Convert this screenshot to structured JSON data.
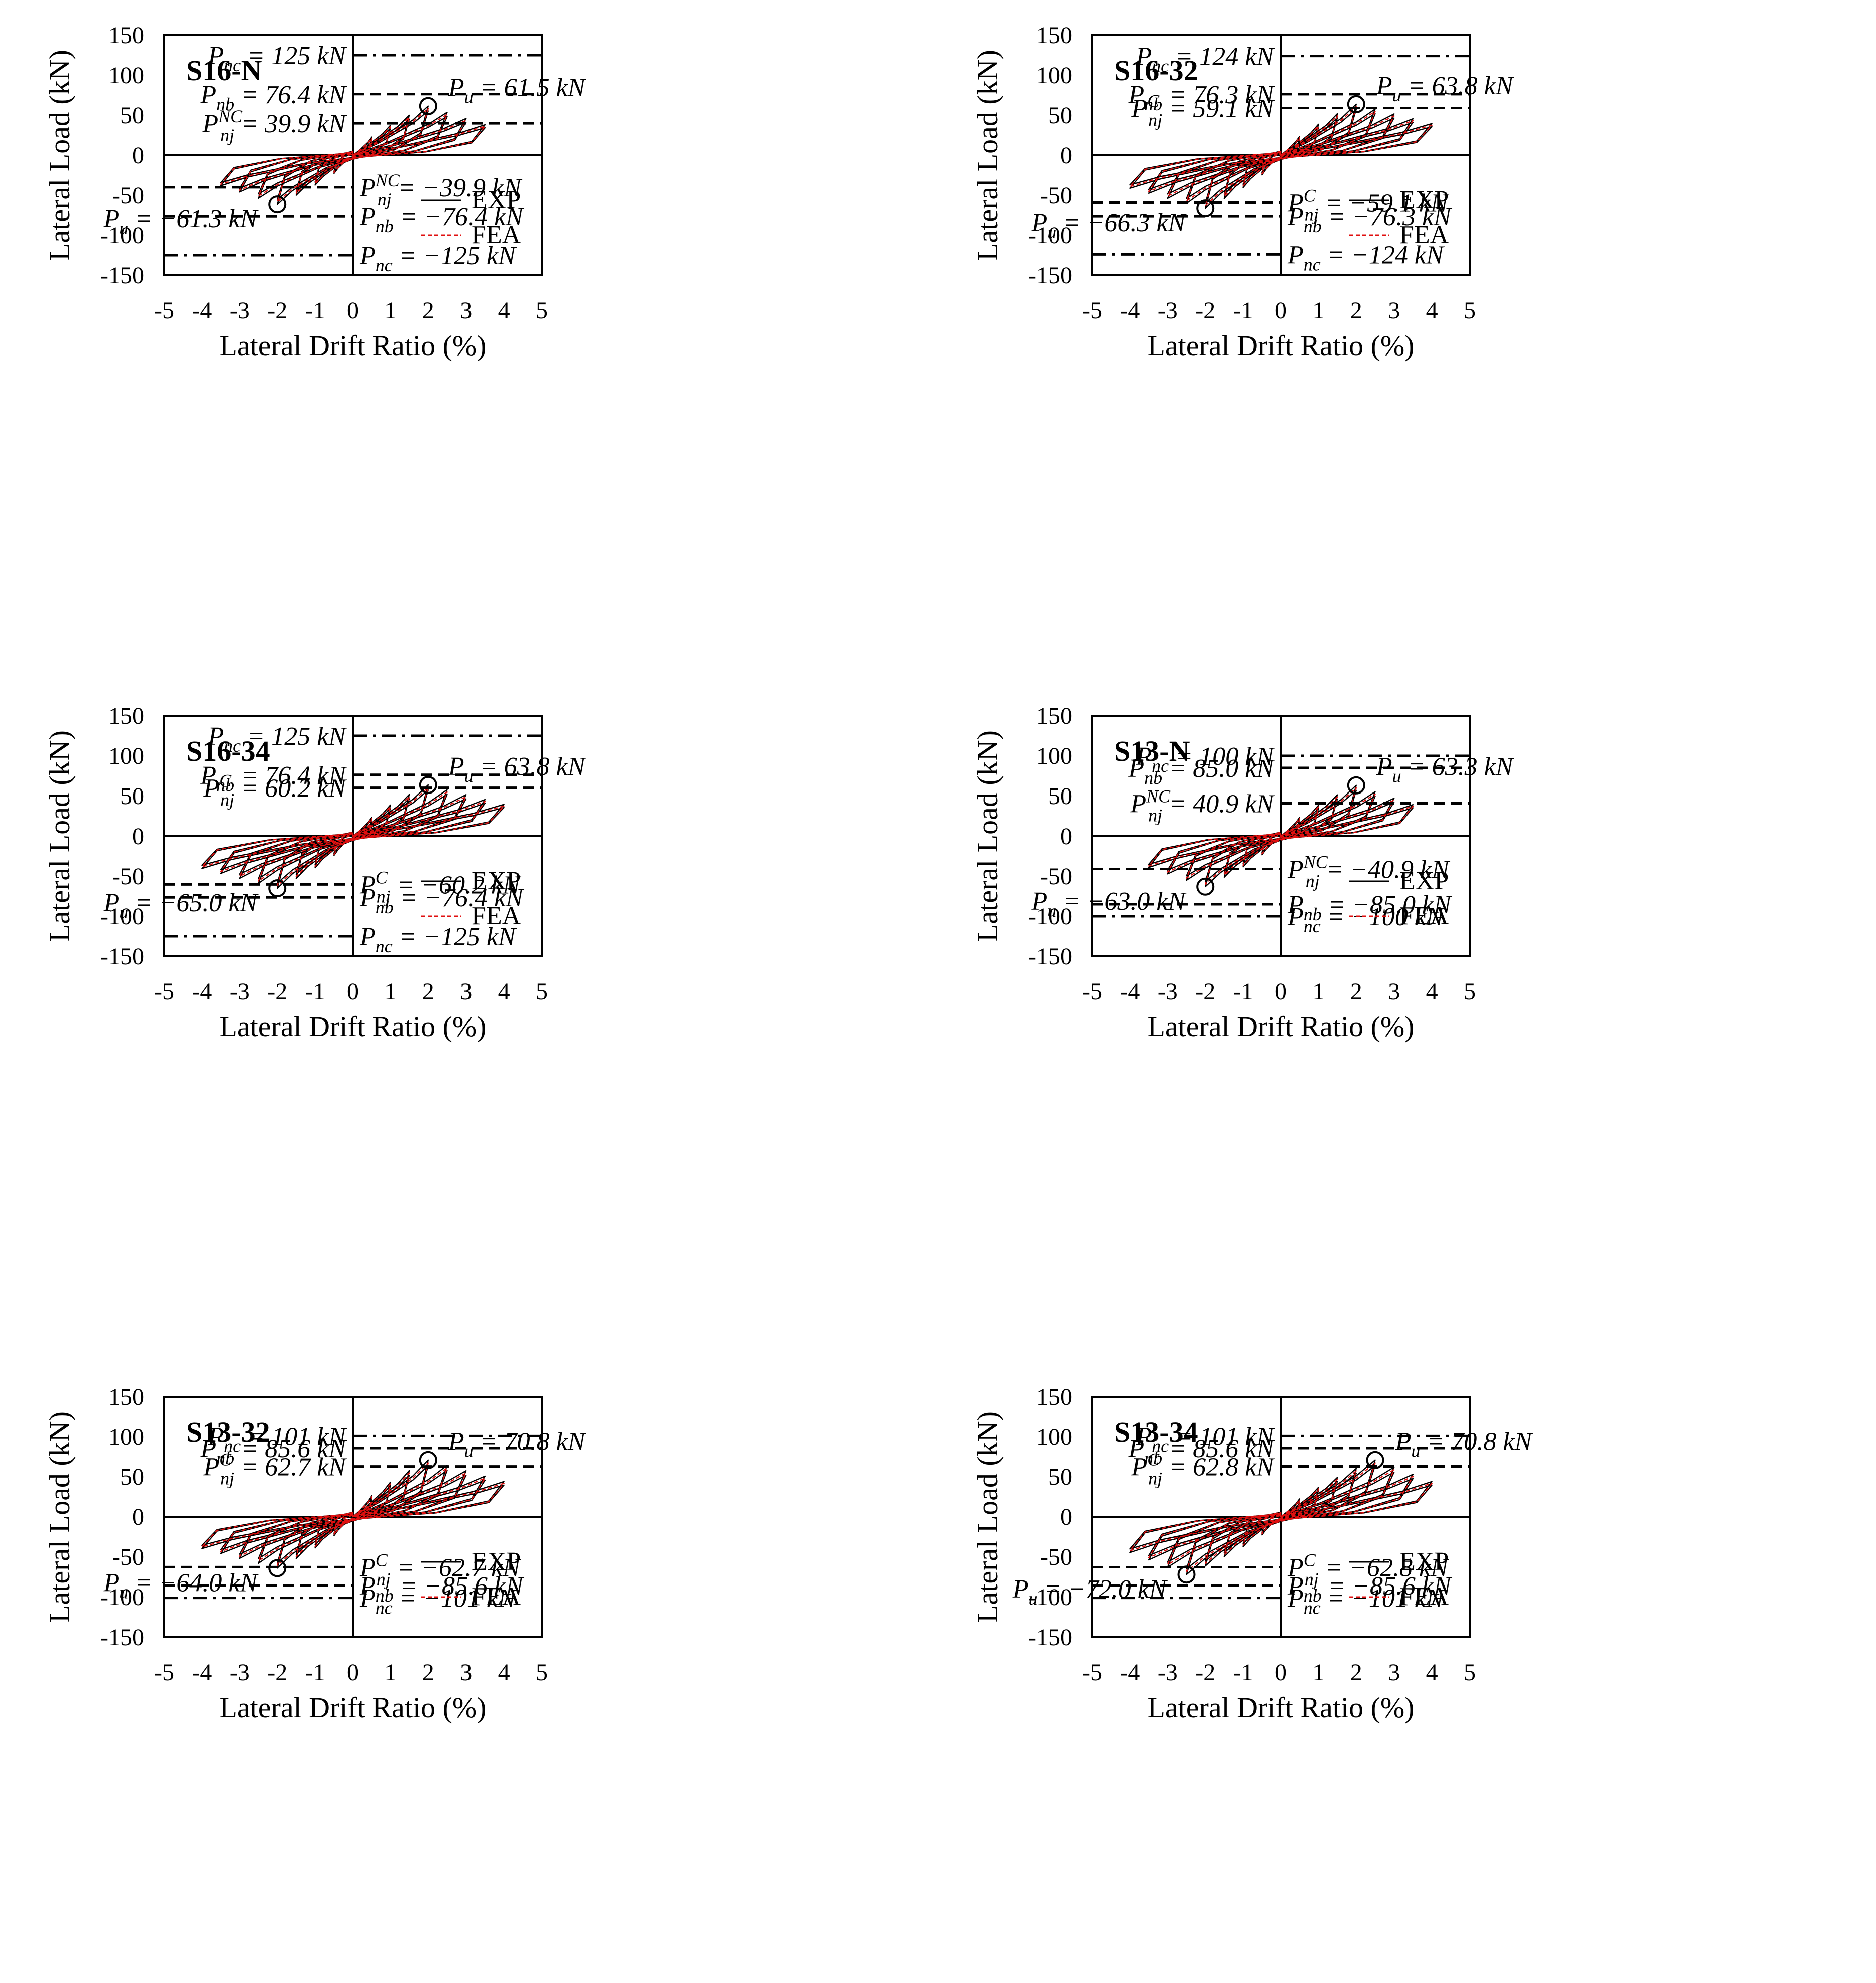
{
  "figure": {
    "series_legend": [
      {
        "name": "EXP",
        "color": "#000000",
        "style": "solid"
      },
      {
        "name": "FEA",
        "color": "#e01010",
        "style": "dashed"
      }
    ]
  },
  "chart_data": [
    {
      "type": "line",
      "title": "S16-N",
      "xlabel": "Lateral Drift Ratio (%)",
      "ylabel": "Lateral Load (kN)",
      "xlim": [
        -5,
        5
      ],
      "ylim": [
        -150,
        150
      ],
      "xticks": [
        "-5",
        "-4",
        "-3",
        "-2",
        "-1",
        "0",
        "1",
        "2",
        "3",
        "4",
        "5"
      ],
      "yticks": [
        "150",
        "100",
        "50",
        "0",
        "-50",
        "-100",
        "-150"
      ],
      "max_drift_pos": 3.5,
      "max_drift_neg": -3.5,
      "peak_pos": 61.5,
      "peak_neg": -61.3,
      "ref_lines": [
        {
          "y": 125,
          "style": "dashdot",
          "side": "right",
          "label": "P_nc = 125 kN"
        },
        {
          "y": 76.4,
          "style": "dashed",
          "side": "right",
          "label": "P_nb = 76.4 kN"
        },
        {
          "y": 39.9,
          "style": "dashed",
          "side": "right",
          "label": "P_nj^NC = 39.9 kN"
        },
        {
          "y": -39.9,
          "style": "dashed",
          "side": "left",
          "label": "P_nj^NC = −39.9 kN"
        },
        {
          "y": -76.4,
          "style": "dashed",
          "side": "left",
          "label": "P_nb = −76.4 kN"
        },
        {
          "y": -125,
          "style": "dashdot",
          "side": "left",
          "label": "P_nc = −125 kN"
        }
      ],
      "points": [
        {
          "x": 2.0,
          "y": 61.5,
          "label": "P_u = 61.5 kN"
        },
        {
          "x": -2.0,
          "y": -61.3,
          "label": "P_u = −61.3 kN"
        }
      ],
      "legend": [
        "EXP",
        "FEA"
      ]
    },
    {
      "type": "line",
      "title": "S16-32",
      "xlabel": "Lateral Drift Ratio (%)",
      "ylabel": "Lateral Load (kN)",
      "xlim": [
        -5,
        5
      ],
      "ylim": [
        -150,
        150
      ],
      "xticks": [
        "-5",
        "-4",
        "-3",
        "-2",
        "-1",
        "0",
        "1",
        "2",
        "3",
        "4",
        "5"
      ],
      "yticks": [
        "150",
        "100",
        "50",
        "0",
        "-50",
        "-100",
        "-150"
      ],
      "max_drift_pos": 4.0,
      "max_drift_neg": -4.0,
      "peak_pos": 63.8,
      "peak_neg": -66.3,
      "ref_lines": [
        {
          "y": 124,
          "style": "dashdot",
          "side": "right",
          "label": "P_nc = 124 kN"
        },
        {
          "y": 76.3,
          "style": "dashed",
          "side": "right",
          "label": "P_nb = 76.3 kN"
        },
        {
          "y": 59.1,
          "style": "dashed",
          "side": "right",
          "label": "P_nj^C = 59.1 kN"
        },
        {
          "y": -59.1,
          "style": "dashed",
          "side": "left",
          "label": "P_nj^C = −59.1 kN"
        },
        {
          "y": -76.3,
          "style": "dashed",
          "side": "left",
          "label": "P_nb = −76.3 kN"
        },
        {
          "y": -124,
          "style": "dashdot",
          "side": "left",
          "label": "P_nc = −124 kN"
        }
      ],
      "points": [
        {
          "x": 2.0,
          "y": 63.8,
          "label": "P_u = 63.8 kN"
        },
        {
          "x": -2.0,
          "y": -66.3,
          "label": "P_u = −66.3 kN"
        }
      ],
      "legend": [
        "EXP",
        "FEA"
      ]
    },
    {
      "type": "line",
      "title": "S16-34",
      "xlabel": "Lateral Drift Ratio (%)",
      "ylabel": "Lateral Load (kN)",
      "xlim": [
        -5,
        5
      ],
      "ylim": [
        -150,
        150
      ],
      "xticks": [
        "-5",
        "-4",
        "-3",
        "-2",
        "-1",
        "0",
        "1",
        "2",
        "3",
        "4",
        "5"
      ],
      "yticks": [
        "150",
        "100",
        "50",
        "0",
        "-50",
        "-100",
        "-150"
      ],
      "max_drift_pos": 4.0,
      "max_drift_neg": -4.0,
      "peak_pos": 63.8,
      "peak_neg": -65.0,
      "ref_lines": [
        {
          "y": 125,
          "style": "dashdot",
          "side": "right",
          "label": "P_nc = 125 kN"
        },
        {
          "y": 76.4,
          "style": "dashed",
          "side": "right",
          "label": "P_nb = 76.4 kN"
        },
        {
          "y": 60.2,
          "style": "dashed",
          "side": "right",
          "label": "P_nj^C = 60.2 kN"
        },
        {
          "y": -60.2,
          "style": "dashed",
          "side": "left",
          "label": "P_nj^C = −60.2 kN"
        },
        {
          "y": -76.4,
          "style": "dashed",
          "side": "left",
          "label": "P_nb = −76.4 kN"
        },
        {
          "y": -125,
          "style": "dashdot",
          "side": "left",
          "label": "P_nc = −125 kN"
        }
      ],
      "points": [
        {
          "x": 2.0,
          "y": 63.8,
          "label": "P_u = 63.8 kN"
        },
        {
          "x": -2.0,
          "y": -65.0,
          "label": "P_u = −65.0 kN"
        }
      ],
      "legend": [
        "EXP",
        "FEA"
      ]
    },
    {
      "type": "line",
      "title": "S13-N",
      "xlabel": "Lateral Drift Ratio (%)",
      "ylabel": "Lateral Load (kN)",
      "xlim": [
        -5,
        5
      ],
      "ylim": [
        -150,
        150
      ],
      "xticks": [
        "-5",
        "-4",
        "-3",
        "-2",
        "-1",
        "0",
        "1",
        "2",
        "3",
        "4",
        "5"
      ],
      "yticks": [
        "150",
        "100",
        "50",
        "0",
        "-50",
        "-100",
        "-150"
      ],
      "max_drift_pos": 3.5,
      "max_drift_neg": -3.5,
      "peak_pos": 63.3,
      "peak_neg": -63.0,
      "ref_lines": [
        {
          "y": 100,
          "style": "dashdot",
          "side": "right",
          "label": "P_nc = 100 kN"
        },
        {
          "y": 85.0,
          "style": "dashed",
          "side": "right",
          "label": "P_nb = 85.0 kN"
        },
        {
          "y": 40.9,
          "style": "dashed",
          "side": "right",
          "label": "P_nj^NC = 40.9 kN"
        },
        {
          "y": -40.9,
          "style": "dashed",
          "side": "left",
          "label": "P_nj^NC = −40.9 kN"
        },
        {
          "y": -85.0,
          "style": "dashed",
          "side": "left",
          "label": "P_nb = −85.0 kN"
        },
        {
          "y": -100,
          "style": "dashdot",
          "side": "left",
          "label": "P_nc = −100 kN"
        }
      ],
      "points": [
        {
          "x": 2.0,
          "y": 63.3,
          "label": "P_u = 63.3 kN"
        },
        {
          "x": -2.0,
          "y": -63.0,
          "label": "P_u = −63.0 kN"
        }
      ],
      "legend": [
        "EXP",
        "FEA"
      ]
    },
    {
      "type": "line",
      "title": "S13-32",
      "xlabel": "Lateral Drift Ratio (%)",
      "ylabel": "Lateral Load (kN)",
      "xlim": [
        -5,
        5
      ],
      "ylim": [
        -150,
        150
      ],
      "xticks": [
        "-5",
        "-4",
        "-3",
        "-2",
        "-1",
        "0",
        "1",
        "2",
        "3",
        "4",
        "5"
      ],
      "yticks": [
        "150",
        "100",
        "50",
        "0",
        "-50",
        "-100",
        "-150"
      ],
      "max_drift_pos": 4.0,
      "max_drift_neg": -4.0,
      "peak_pos": 70.8,
      "peak_neg": -64.0,
      "ref_lines": [
        {
          "y": 101,
          "style": "dashdot",
          "side": "right",
          "label": "P_nc = 101 kN"
        },
        {
          "y": 85.6,
          "style": "dashed",
          "side": "right",
          "label": "P_nb = 85.6 kN"
        },
        {
          "y": 62.7,
          "style": "dashed",
          "side": "right",
          "label": "P_nj^C = 62.7 kN"
        },
        {
          "y": -62.7,
          "style": "dashed",
          "side": "left",
          "label": "P_nj^C = −62.7 kN"
        },
        {
          "y": -85.6,
          "style": "dashed",
          "side": "left",
          "label": "P_nb = −85.6 kN"
        },
        {
          "y": -101,
          "style": "dashdot",
          "side": "left",
          "label": "P_nc = −101 kN"
        }
      ],
      "points": [
        {
          "x": 2.0,
          "y": 70.8,
          "label": "P_u = 70.8 kN"
        },
        {
          "x": -2.0,
          "y": -64.0,
          "label": "P_u = −64.0 kN"
        }
      ],
      "legend": [
        "EXP",
        "FEA"
      ]
    },
    {
      "type": "line",
      "title": "S13-34",
      "xlabel": "Lateral Drift Ratio (%)",
      "ylabel": "Lateral Load (kN)",
      "xlim": [
        -5,
        5
      ],
      "ylim": [
        -150,
        150
      ],
      "xticks": [
        "-5",
        "-4",
        "-3",
        "-2",
        "-1",
        "0",
        "1",
        "2",
        "3",
        "4",
        "5"
      ],
      "yticks": [
        "150",
        "100",
        "50",
        "0",
        "-50",
        "-100",
        "-150"
      ],
      "max_drift_pos": 4.0,
      "max_drift_neg": -4.0,
      "peak_pos": 70.8,
      "peak_neg": -72.0,
      "ref_lines": [
        {
          "y": 101,
          "style": "dashdot",
          "side": "right",
          "label": "P_nc = 101 kN"
        },
        {
          "y": 85.6,
          "style": "dashed",
          "side": "right",
          "label": "P_nb = 85.6 kN"
        },
        {
          "y": 62.8,
          "style": "dashed",
          "side": "right",
          "label": "P_nj^C = 62.8 kN"
        },
        {
          "y": -62.8,
          "style": "dashed",
          "side": "left",
          "label": "P_nj^C = −62.8 kN"
        },
        {
          "y": -85.6,
          "style": "dashed",
          "side": "left",
          "label": "P_nb = −85.6 kN"
        },
        {
          "y": -101,
          "style": "dashdot",
          "side": "left",
          "label": "P_nc = −101 kN"
        }
      ],
      "points": [
        {
          "x": 2.5,
          "y": 70.8,
          "label": "P_u = 70.8 kN"
        },
        {
          "x": -2.5,
          "y": -72.0,
          "label": "P_u = −72.0 kN"
        }
      ],
      "legend": [
        "EXP",
        "FEA"
      ]
    }
  ]
}
